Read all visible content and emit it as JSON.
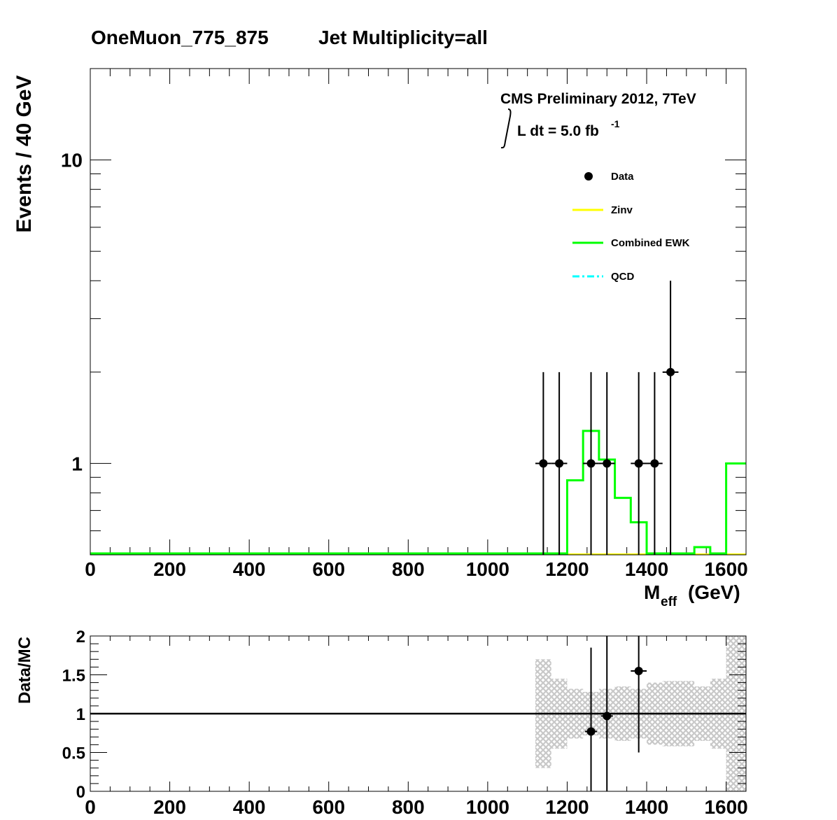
{
  "header": {
    "title_left": "OneMuon_775_875",
    "title_right": "Jet Multiplicity=all"
  },
  "annotation": {
    "experiment": "CMS Preliminary 2012, 7TeV",
    "lumi_prefix": "L dt = 5.0 fb",
    "lumi_exp": "-1"
  },
  "colors": {
    "data": "#000000",
    "zinv": "#ffff00",
    "ewk": "#00ff00",
    "qcd": "#00ffff",
    "band": "#c8c8c8"
  },
  "chart_data": [
    {
      "type": "line",
      "ylabel": "Events / 40 GeV",
      "xlabel": "M",
      "xlabel_sub": "eff",
      "xlabel_unit": "(GeV)",
      "log_y": true,
      "xlim": [
        0,
        1650
      ],
      "ylim": [
        0.5,
        20
      ],
      "x_ticks": [
        "0",
        "200",
        "400",
        "600",
        "800",
        "1000",
        "1200",
        "1400",
        "1600"
      ],
      "y_ticks": [
        "1",
        "10"
      ],
      "legend": [
        {
          "label": "Data",
          "style": "marker"
        },
        {
          "label": "Zinv",
          "style": "line"
        },
        {
          "label": "Combined EWK",
          "style": "line"
        },
        {
          "label": "QCD",
          "style": "dashdot"
        }
      ],
      "legend_placement": "top-right",
      "series": [
        {
          "name": "Data",
          "points": [
            {
              "x": 1140,
              "y": 1,
              "xerr": 20,
              "yhigh": 2
            },
            {
              "x": 1180,
              "y": 1,
              "xerr": 20,
              "yhigh": 2
            },
            {
              "x": 1260,
              "y": 1,
              "xerr": 20,
              "yhigh": 2
            },
            {
              "x": 1300,
              "y": 1,
              "xerr": 20,
              "yhigh": 2
            },
            {
              "x": 1380,
              "y": 1,
              "xerr": 20,
              "yhigh": 2
            },
            {
              "x": 1420,
              "y": 1,
              "xerr": 20,
              "yhigh": 2
            },
            {
              "x": 1460,
              "y": 2,
              "xerr": 20,
              "yhigh": 4
            }
          ]
        },
        {
          "name": "Combined EWK",
          "edges": [
            0,
            1200,
            1240,
            1280,
            1320,
            1360,
            1400,
            1440,
            1520,
            1560,
            1600,
            1650
          ],
          "values": [
            0.5,
            0.88,
            1.28,
            1.03,
            0.77,
            0.64,
            0.5,
            0.5,
            0.53,
            0.5,
            1.0
          ]
        },
        {
          "name": "Zinv",
          "edges": [
            0,
            1650
          ],
          "values": [
            0.5
          ]
        }
      ]
    },
    {
      "type": "scatter",
      "ylabel": "Data/MC",
      "xlim": [
        0,
        1650
      ],
      "ylim": [
        0,
        2
      ],
      "x_ticks": [
        "0",
        "200",
        "400",
        "600",
        "800",
        "1000",
        "1200",
        "1400",
        "1600"
      ],
      "y_ticks": [
        "0",
        "0.5",
        "1",
        "1.5",
        "2"
      ],
      "reference_line": 1,
      "points": [
        {
          "x": 1260,
          "y": 0.77,
          "xerr": 15,
          "ylow": 0,
          "yhigh": 1.85
        },
        {
          "x": 1300,
          "y": 0.97,
          "xerr": 15,
          "ylow": 0,
          "yhigh": 2
        },
        {
          "x": 1380,
          "y": 1.55,
          "xerr": 20,
          "ylow": 0.5,
          "yhigh": 2
        }
      ],
      "band": [
        {
          "x0": 1120,
          "x1": 1160,
          "lo": 0.3,
          "hi": 1.7
        },
        {
          "x0": 1160,
          "x1": 1200,
          "lo": 0.55,
          "hi": 1.45
        },
        {
          "x0": 1200,
          "x1": 1240,
          "lo": 0.68,
          "hi": 1.32
        },
        {
          "x0": 1240,
          "x1": 1280,
          "lo": 0.72,
          "hi": 1.28
        },
        {
          "x0": 1280,
          "x1": 1320,
          "lo": 0.68,
          "hi": 1.32
        },
        {
          "x0": 1320,
          "x1": 1360,
          "lo": 0.65,
          "hi": 1.35
        },
        {
          "x0": 1360,
          "x1": 1400,
          "lo": 0.68,
          "hi": 1.32
        },
        {
          "x0": 1400,
          "x1": 1440,
          "lo": 0.6,
          "hi": 1.4
        },
        {
          "x0": 1440,
          "x1": 1520,
          "lo": 0.58,
          "hi": 1.42
        },
        {
          "x0": 1520,
          "x1": 1560,
          "lo": 0.65,
          "hi": 1.35
        },
        {
          "x0": 1560,
          "x1": 1600,
          "lo": 0.55,
          "hi": 1.45
        },
        {
          "x0": 1600,
          "x1": 1650,
          "lo": 0.0,
          "hi": 2.0
        }
      ]
    }
  ]
}
